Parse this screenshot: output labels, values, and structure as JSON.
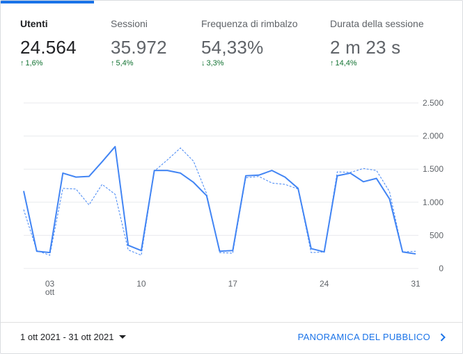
{
  "metrics": [
    {
      "label": "Utenti",
      "value": "24.564",
      "delta": "1,6%",
      "direction": "up",
      "active": true
    },
    {
      "label": "Sessioni",
      "value": "35.972",
      "delta": "5,4%",
      "direction": "up",
      "active": false
    },
    {
      "label": "Frequenza di rimbalzo",
      "value": "54,33%",
      "delta": "3,3%",
      "direction": "down",
      "active": false
    },
    {
      "label": "Durata della sessione",
      "value": "2 m 23 s",
      "delta": "14,4%",
      "direction": "up",
      "active": false
    }
  ],
  "chart_data": {
    "type": "line",
    "x": [
      "1",
      "2",
      "3",
      "4",
      "5",
      "6",
      "7",
      "8",
      "9",
      "10",
      "11",
      "12",
      "13",
      "14",
      "15",
      "16",
      "17",
      "18",
      "19",
      "20",
      "21",
      "22",
      "23",
      "24",
      "25",
      "26",
      "27",
      "28",
      "29",
      "30",
      "31"
    ],
    "series": [
      {
        "values": [
          1170,
          260,
          240,
          1440,
          1380,
          1390,
          1610,
          1840,
          350,
          270,
          1480,
          1480,
          1440,
          1300,
          1100,
          260,
          270,
          1400,
          1410,
          1480,
          1380,
          1210,
          300,
          250,
          1400,
          1440,
          1310,
          1360,
          1050,
          250,
          220
        ]
      },
      {
        "values": [
          890,
          270,
          200,
          1210,
          1200,
          960,
          1270,
          1120,
          280,
          200,
          1470,
          1640,
          1820,
          1620,
          1130,
          240,
          230,
          1370,
          1390,
          1290,
          1270,
          1200,
          240,
          250,
          1460,
          1450,
          1510,
          1480,
          1160,
          250,
          260
        ]
      }
    ],
    "x_ticks": [
      {
        "day": 3,
        "label": "03",
        "sub": "ott"
      },
      {
        "day": 10,
        "label": "10"
      },
      {
        "day": 17,
        "label": "17"
      },
      {
        "day": 24,
        "label": "24"
      },
      {
        "day": 31,
        "label": "31"
      }
    ],
    "y_ticks": [
      {
        "value": 2500,
        "label": "2.500"
      },
      {
        "value": 2000,
        "label": "2.000"
      },
      {
        "value": 1500,
        "label": "1.500"
      },
      {
        "value": 1000,
        "label": "1.000"
      },
      {
        "value": 500,
        "label": "500"
      },
      {
        "value": 0,
        "label": "0"
      }
    ],
    "ylim": [
      0,
      2500
    ],
    "grid": true,
    "colors": {
      "current": "#4285f4",
      "previous": "#4285f4",
      "grid": "#e8eaed"
    }
  },
  "footer": {
    "date_range": "1 ott 2021 - 31 ott 2021",
    "audience_link": "PANORAMICA DEL PUBBLICO"
  }
}
